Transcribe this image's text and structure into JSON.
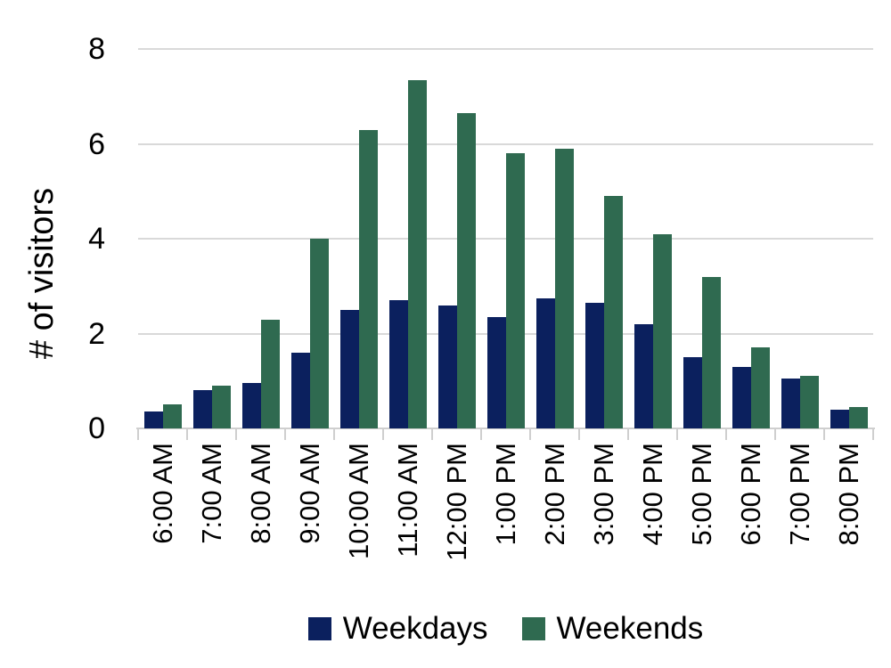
{
  "chart_data": {
    "type": "bar",
    "title": "",
    "xlabel": "",
    "ylabel": "# of visitors",
    "categories": [
      "6:00 AM",
      "7:00 AM",
      "8:00 AM",
      "9:00 AM",
      "10:00 AM",
      "11:00 AM",
      "12:00 PM",
      "1:00 PM",
      "2:00 PM",
      "3:00 PM",
      "4:00 PM",
      "5:00 PM",
      "6:00 PM",
      "7:00 PM",
      "8:00 PM"
    ],
    "series": [
      {
        "name": "Weekdays",
        "color": "#0B205E",
        "values": [
          0.35,
          0.8,
          0.95,
          1.6,
          2.5,
          2.7,
          2.6,
          2.35,
          2.75,
          2.65,
          2.2,
          1.5,
          1.3,
          1.05,
          0.4
        ]
      },
      {
        "name": "Weekends",
        "color": "#2F6A50",
        "values": [
          0.5,
          0.9,
          2.3,
          4.0,
          6.3,
          7.35,
          6.65,
          5.8,
          5.9,
          4.9,
          4.1,
          3.2,
          1.7,
          1.1,
          0.45
        ]
      }
    ],
    "ylim": [
      0,
      8
    ],
    "yticks": [
      0,
      2,
      4,
      6,
      8
    ],
    "grid": "horizontal",
    "legend_position": "bottom",
    "colors": {
      "gridline": "#D9D9D9",
      "axis": "#CFCFCF",
      "text": "#000000",
      "background": "#FFFFFF"
    }
  }
}
